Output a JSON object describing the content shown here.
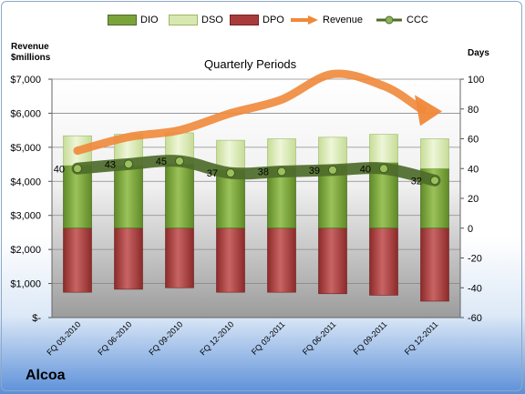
{
  "company": "Alcoa",
  "chart_data": {
    "type": "bar",
    "title": "Quarterly Periods",
    "left_axis_title": [
      "Revenue",
      "$millions"
    ],
    "right_axis_title": "Days",
    "categories": [
      "FQ 03-2010",
      "FQ 06-2010",
      "FQ 09-2010",
      "FQ 12-2010",
      "FQ 03-2011",
      "FQ 06-2011",
      "FQ 09-2011",
      "FQ 12-2011"
    ],
    "left_ticks": [
      "$-",
      "$1,000",
      "$2,000",
      "$3,000",
      "$4,000",
      "$5,000",
      "$6,000",
      "$7,000"
    ],
    "right_ticks": [
      "-60",
      "-40",
      "-20",
      "0",
      "20",
      "40",
      "60",
      "80",
      "100"
    ],
    "ylim_left": [
      0,
      7000
    ],
    "ylim_right": [
      -60,
      100
    ],
    "series": [
      {
        "name": "DIO",
        "axis": "right",
        "type": "stacked-bar",
        "color": "#7aa33a",
        "values": [
          42,
          42,
          43,
          39,
          41,
          42,
          44,
          40
        ]
      },
      {
        "name": "DSO",
        "axis": "right",
        "type": "stacked-bar",
        "color": "#d8e8b0",
        "values": [
          20,
          21,
          21,
          20,
          19,
          19,
          19,
          20
        ]
      },
      {
        "name": "DPO",
        "axis": "right",
        "type": "negative-bar",
        "color": "#a83c3c",
        "values": [
          -43,
          -41,
          -40,
          -43,
          -43,
          -44,
          -45,
          -49
        ]
      },
      {
        "name": "Revenue",
        "axis": "left",
        "type": "arrow-line",
        "color": "#f0883a",
        "values": [
          4900,
          5300,
          5500,
          6000,
          6400,
          7150,
          6800,
          6000
        ]
      },
      {
        "name": "CCC",
        "axis": "right",
        "type": "line-markers",
        "color": "#4e6b2a",
        "values": [
          40,
          43,
          45,
          37,
          38,
          39,
          40,
          32
        ]
      }
    ],
    "ccc_labels": [
      "40",
      "43",
      "45",
      "37",
      "38",
      "39",
      "40",
      "32"
    ],
    "grid": true,
    "legend_position": "top"
  }
}
